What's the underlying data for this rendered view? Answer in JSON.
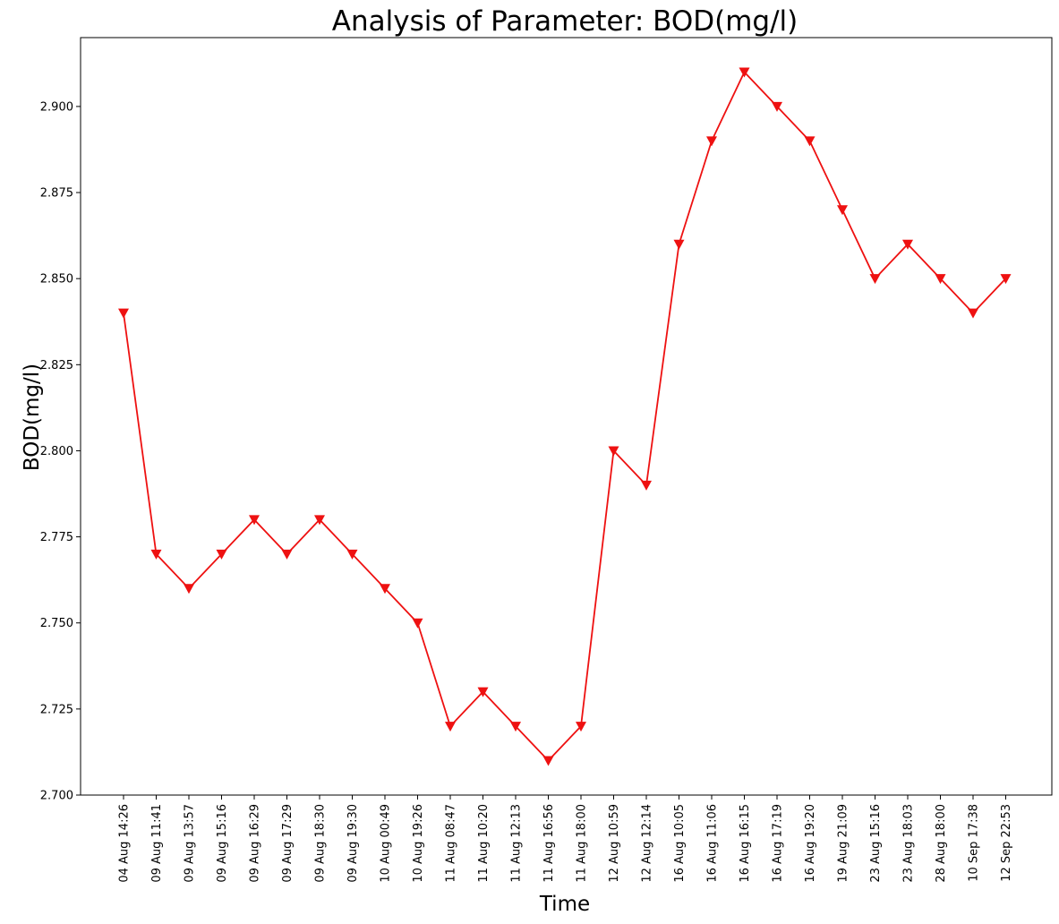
{
  "chart_data": {
    "type": "line",
    "title": "Analysis of Parameter: BOD(mg/l)",
    "xlabel": "Time",
    "ylabel": "BOD(mg/l)",
    "ylim": [
      2.7,
      2.92
    ],
    "yticks": [
      "2.700",
      "2.725",
      "2.750",
      "2.775",
      "2.800",
      "2.825",
      "2.850",
      "2.875",
      "2.900"
    ],
    "grid": false,
    "marker": "triangle-down",
    "line_color": "#ee1111",
    "categories": [
      "04 Aug 14:26",
      "09 Aug 11:41",
      "09 Aug 13:57",
      "09 Aug 15:16",
      "09 Aug 16:29",
      "09 Aug 17:29",
      "09 Aug 18:30",
      "09 Aug 19:30",
      "10 Aug 00:49",
      "10 Aug 19:26",
      "11 Aug 08:47",
      "11 Aug 10:20",
      "11 Aug 12:13",
      "11 Aug 16:56",
      "11 Aug 18:00",
      "12 Aug 10:59",
      "12 Aug 12:14",
      "16 Aug 10:05",
      "16 Aug 11:06",
      "16 Aug 16:15",
      "16 Aug 17:19",
      "16 Aug 19:20",
      "19 Aug 21:09",
      "23 Aug 15:16",
      "23 Aug 18:03",
      "28 Aug 18:00",
      "10 Sep 17:38",
      "12 Sep 22:53"
    ],
    "values": [
      2.84,
      2.77,
      2.76,
      2.77,
      2.78,
      2.77,
      2.78,
      2.77,
      2.76,
      2.75,
      2.72,
      2.73,
      2.72,
      2.71,
      2.72,
      2.8,
      2.79,
      2.86,
      2.89,
      2.91,
      2.9,
      2.89,
      2.87,
      2.85,
      2.86,
      2.85,
      2.84,
      2.85
    ]
  }
}
